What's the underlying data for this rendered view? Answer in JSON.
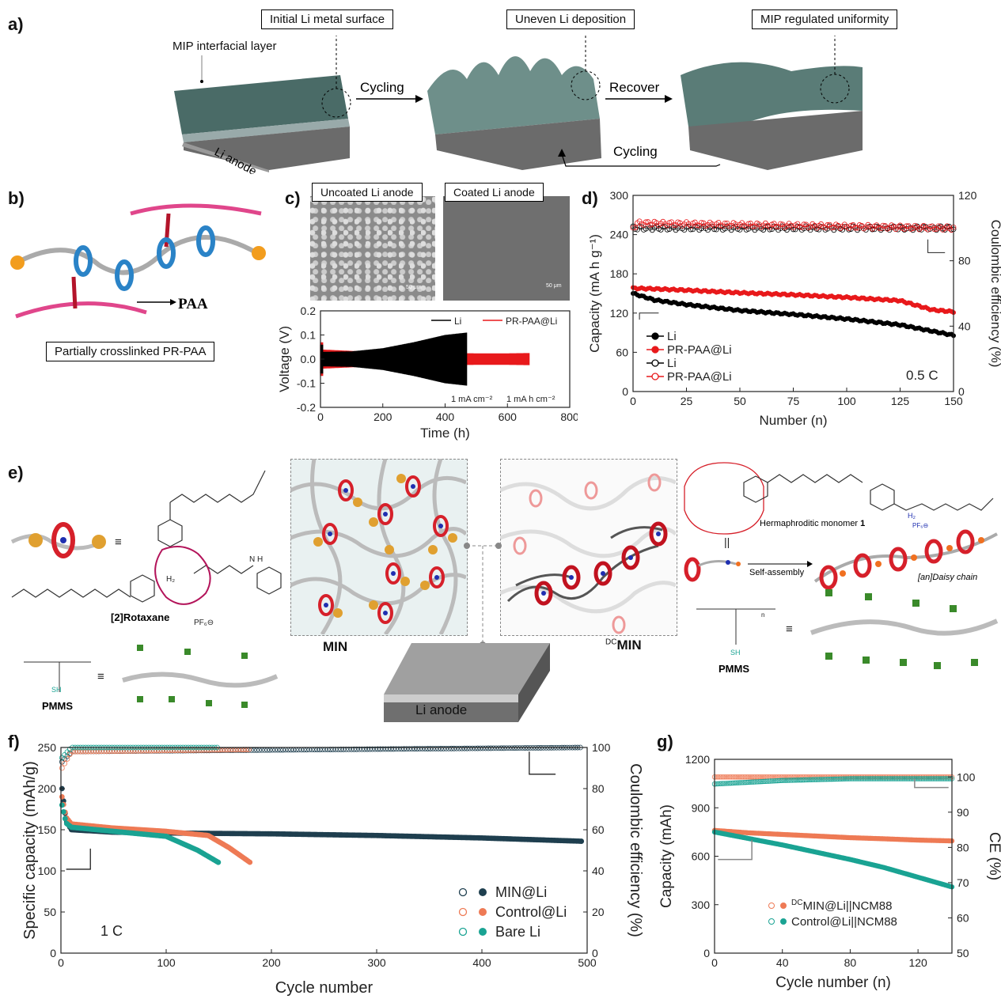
{
  "panels": {
    "a": {
      "label": "a)",
      "boxes": [
        "Initial Li metal surface",
        "Uneven Li deposition",
        "MIP regulated uniformity"
      ],
      "mip_layer": "MIP interfacial layer",
      "anode": "Li anode",
      "arrow1": "Cycling",
      "arrow2": "Recover",
      "arrow3": "Cycling"
    },
    "b": {
      "label": "b)",
      "paa": "PAA",
      "caption": "Partially crosslinked PR-PAA"
    },
    "c": {
      "label": "c)",
      "img_uncoated": "Uncoated Li anode",
      "img_coated": "Coated Li anode",
      "scale1": "50 μm",
      "scale2": "50 μm",
      "cond1": "1 mA cm⁻²",
      "cond2": "1 mA h cm⁻²",
      "xlabel": "Time (h)",
      "ylabel": "Voltage (V)",
      "legend": [
        "Li",
        "PR-PAA@Li"
      ],
      "xticks": [
        "0",
        "200",
        "400",
        "600",
        "800"
      ],
      "yticks": [
        "0.2",
        "0.1",
        "0.0",
        "-0.1",
        "-0.2"
      ]
    },
    "d": {
      "label": "d)",
      "ylabel": "Capacity (mA h g⁻¹)",
      "y2label": "Coulombic efficiency (%)",
      "xlabel": "Number (n)",
      "rate": "0.5 C",
      "legend": [
        "Li",
        "PR-PAA@Li",
        "Li",
        "PR-PAA@Li"
      ],
      "xticks": [
        "0",
        "25",
        "50",
        "75",
        "100",
        "125",
        "150"
      ],
      "yticks": [
        "0",
        "60",
        "120",
        "180",
        "240",
        "300"
      ],
      "y2ticks": [
        "0",
        "40",
        "80",
        "120"
      ]
    },
    "e": {
      "label": "e)",
      "rotaxane": "[2]Rotaxane",
      "pf6": "PF₆⊖",
      "h2": "H₂",
      "nh": "N H",
      "min": "MIN",
      "dcmin_sup": "DC",
      "dcmin": "MIN",
      "monomer": "Hermaphroditic monomer",
      "monomer_num": "1",
      "self_assembly": "Self-assembly",
      "daisy": "[an]Daisy chain",
      "pmms_left": "PMMS",
      "pmms_right": "PMMS",
      "sh": "SH",
      "n": "n",
      "anode": "Li anode",
      "equiv": "≡",
      "parallel": "||"
    },
    "f": {
      "label": "f)",
      "ylabel": "Specific capacity (mAh/g)",
      "y2label": "Coulombic efficiency (%)",
      "xlabel": "Cycle number",
      "rate": "1 C",
      "legend": [
        "MIN@Li",
        "Control@Li",
        "Bare Li"
      ],
      "xticks": [
        "0",
        "100",
        "200",
        "300",
        "400",
        "500"
      ],
      "yticks": [
        "0",
        "50",
        "100",
        "150",
        "200",
        "250"
      ],
      "y2ticks": [
        "0",
        "20",
        "40",
        "60",
        "80",
        "100"
      ]
    },
    "g": {
      "label": "g)",
      "ylabel": "Capacity (mAh)",
      "y2label": "CE (%)",
      "xlabel": "Cycle number (n)",
      "legend_sup": "DC",
      "legend": [
        "MIN@Li||NCM88",
        "Control@Li||NCM88"
      ],
      "xticks": [
        "0",
        "40",
        "80",
        "120"
      ],
      "yticks": [
        "0",
        "300",
        "600",
        "900",
        "1200"
      ],
      "y2ticks": [
        "50",
        "60",
        "70",
        "80",
        "90",
        "100"
      ]
    }
  },
  "chart_data": [
    {
      "type": "line",
      "panel": "c",
      "xlabel": "Time (h)",
      "ylabel": "Voltage (V)",
      "xlim": [
        0,
        800
      ],
      "ylim": [
        -0.2,
        0.2
      ],
      "series": [
        {
          "name": "Li",
          "color": "#000000",
          "x": [
            0,
            100,
            200,
            300,
            400,
            470
          ],
          "amplitude": [
            0.03,
            0.032,
            0.045,
            0.07,
            0.1,
            0.11
          ]
        },
        {
          "name": "PR-PAA@Li",
          "color": "#e8191b",
          "x": [
            0,
            100,
            200,
            300,
            400,
            500,
            600,
            670
          ],
          "amplitude": [
            0.04,
            0.034,
            0.03,
            0.027,
            0.025,
            0.024,
            0.024,
            0.025
          ]
        }
      ]
    },
    {
      "type": "line",
      "panel": "d",
      "xlabel": "Number (n)",
      "ylabel": "Capacity (mA h g⁻¹)",
      "y2label": "Coulombic efficiency (%)",
      "xlim": [
        0,
        150
      ],
      "ylim": [
        0,
        300
      ],
      "y2lim": [
        0,
        120
      ],
      "series": [
        {
          "name": "Li",
          "axis": "left",
          "color": "#000000",
          "x": [
            0,
            10,
            25,
            50,
            75,
            100,
            125,
            150
          ],
          "values": [
            150,
            140,
            133,
            124,
            118,
            111,
            102,
            86
          ]
        },
        {
          "name": "PR-PAA@Li",
          "axis": "left",
          "color": "#e8191b",
          "x": [
            0,
            10,
            25,
            50,
            75,
            100,
            125,
            140,
            150
          ],
          "values": [
            158,
            157,
            155,
            151,
            148,
            144,
            139,
            125,
            122
          ]
        },
        {
          "name": "Li",
          "axis": "right",
          "color": "#000000",
          "x": [
            0,
            150
          ],
          "values": [
            100,
            100
          ]
        },
        {
          "name": "PR-PAA@Li",
          "axis": "right",
          "color": "#e8191b",
          "x": [
            0,
            2,
            150
          ],
          "values": [
            100,
            103,
            100
          ]
        }
      ]
    },
    {
      "type": "scatter",
      "panel": "f",
      "xlabel": "Cycle number",
      "ylabel": "Specific capacity (mAh/g)",
      "y2label": "Coulombic efficiency (%)",
      "xlim": [
        0,
        500
      ],
      "ylim": [
        0,
        250
      ],
      "y2lim": [
        0,
        100
      ],
      "series": [
        {
          "name": "MIN@Li",
          "axis": "left",
          "color": "#1f3f4f",
          "x": [
            1,
            5,
            10,
            50,
            100,
            200,
            300,
            400,
            495
          ],
          "values": [
            200,
            160,
            150,
            147,
            146,
            145,
            143,
            140,
            136
          ]
        },
        {
          "name": "Control@Li",
          "axis": "left",
          "color": "#ee7a55",
          "x": [
            1,
            5,
            10,
            50,
            100,
            140,
            160,
            180
          ],
          "values": [
            190,
            165,
            157,
            152,
            148,
            143,
            128,
            110
          ]
        },
        {
          "name": "Bare Li",
          "axis": "left",
          "color": "#1aa393",
          "x": [
            1,
            5,
            10,
            50,
            100,
            130,
            150
          ],
          "values": [
            180,
            158,
            153,
            148,
            142,
            125,
            110
          ]
        },
        {
          "name": "MIN@Li",
          "axis": "right",
          "color": "#1f3f4f",
          "x": [
            1,
            10,
            495
          ],
          "values": [
            93,
            98,
            100
          ]
        },
        {
          "name": "Control@Li",
          "axis": "right",
          "color": "#ee7a55",
          "x": [
            1,
            10,
            180
          ],
          "values": [
            90,
            98,
            99
          ]
        },
        {
          "name": "Bare Li",
          "axis": "right",
          "color": "#1aa393",
          "x": [
            1,
            10,
            150
          ],
          "values": [
            95,
            100,
            100
          ]
        }
      ]
    },
    {
      "type": "scatter",
      "panel": "g",
      "xlabel": "Cycle number (n)",
      "ylabel": "Capacity (mAh)",
      "y2label": "CE (%)",
      "xlim": [
        0,
        140
      ],
      "ylim": [
        0,
        1200
      ],
      "y2lim": [
        50,
        105
      ],
      "series": [
        {
          "name": "DCMIN@Li||NCM88",
          "axis": "left",
          "color": "#ee7a55",
          "x": [
            0,
            20,
            40,
            60,
            80,
            100,
            120,
            140
          ],
          "values": [
            760,
            745,
            735,
            725,
            715,
            708,
            700,
            695
          ]
        },
        {
          "name": "Control@Li||NCM88",
          "axis": "left",
          "color": "#1aa393",
          "x": [
            0,
            20,
            40,
            60,
            80,
            100,
            120,
            140
          ],
          "values": [
            750,
            710,
            670,
            625,
            580,
            530,
            470,
            410
          ]
        },
        {
          "name": "DCMIN@Li||NCM88",
          "axis": "right",
          "color": "#ee7a55",
          "x": [
            0,
            140
          ],
          "values": [
            100,
            100
          ]
        },
        {
          "name": "Control@Li||NCM88",
          "axis": "right",
          "color": "#1aa393",
          "x": [
            0,
            40,
            80,
            140
          ],
          "values": [
            98,
            99,
            99.5,
            99.5
          ]
        }
      ]
    }
  ]
}
